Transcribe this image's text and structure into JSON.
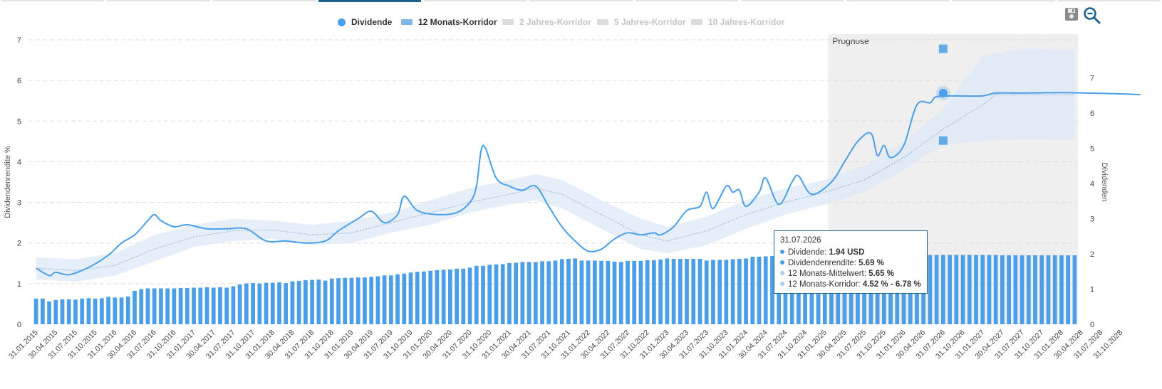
{
  "tabs": [
    {
      "active": false
    },
    {
      "active": false
    },
    {
      "active": false
    },
    {
      "active": true
    },
    {
      "active": false
    },
    {
      "active": false
    },
    {
      "active": false
    },
    {
      "active": false
    },
    {
      "active": false
    },
    {
      "active": false
    },
    {
      "active": false
    }
  ],
  "legend": [
    {
      "label": "Dividende",
      "active": true,
      "shape": "dot"
    },
    {
      "label": "12 Monats-Korridor",
      "active": true,
      "shape": "bar"
    },
    {
      "label": "2 Jahres-Korridor",
      "active": false,
      "shape": "bar"
    },
    {
      "label": "5 Jahres-Korridor",
      "active": false,
      "shape": "bar"
    },
    {
      "label": "10 Jahres-Korridor",
      "active": false,
      "shape": "bar"
    }
  ],
  "toolbar": {
    "save_icon": "save-icon",
    "zoom_icon": "zoom-out-icon"
  },
  "tooltip": {
    "date": "31.07.2026",
    "rows": [
      {
        "label": "Dividende: ",
        "value": "1.94 USD"
      },
      {
        "label": "Dividendenrendite: ",
        "value": "5.69 %"
      },
      {
        "label": "12 Monats-Mittelwert: ",
        "value": "5.65 %"
      },
      {
        "label": "12 Monats-Korridor: ",
        "value": "4.52 % - 6.78 %"
      }
    ]
  },
  "chart_data": {
    "type": "bar+line",
    "title": "",
    "ylabel_left": "Dividendenrendite %",
    "ylabel_right": "Dividenden",
    "ylim_left": [
      0,
      7
    ],
    "ylim_right": [
      0,
      8
    ],
    "yticks_left": [
      "0",
      "1",
      "2",
      "3",
      "4",
      "5",
      "6",
      "7"
    ],
    "yticks_right": [
      "0",
      "1",
      "2",
      "3",
      "4",
      "5",
      "6",
      "7"
    ],
    "forecast_label": "Prognose",
    "forecast_start_month": 121,
    "colors": {
      "line": "#4a9fe8",
      "bar": "#4a9fe8",
      "band": "#ddeaf7",
      "forecast_bg": "#efefef"
    },
    "x_tick_labels": [
      "31.01.2015",
      "30.04.2015",
      "31.07.2015",
      "31.10.2015",
      "31.01.2016",
      "30.04.2016",
      "31.07.2016",
      "31.10.2016",
      "31.01.2017",
      "30.04.2017",
      "31.07.2017",
      "31.10.2017",
      "31.01.2018",
      "30.04.2018",
      "31.07.2018",
      "31.10.2018",
      "31.01.2019",
      "30.04.2019",
      "31.07.2019",
      "31.10.2019",
      "31.01.2020",
      "30.04.2020",
      "31.07.2020",
      "31.10.2020",
      "31.01.2021",
      "30.04.2021",
      "31.07.2021",
      "31.10.2021",
      "31.01.2022",
      "30.04.2022",
      "31.07.2022",
      "31.10.2022",
      "31.01.2023",
      "30.04.2023",
      "31.07.2023",
      "31.10.2023",
      "31.01.2024",
      "30.04.2024",
      "31.07.2024",
      "31.10.2024",
      "31.01.2025",
      "30.04.2025",
      "31.07.2025",
      "31.10.2025",
      "31.01.2026",
      "30.04.2026",
      "31.07.2026",
      "31.10.2026",
      "31.01.2027",
      "30.04.2027",
      "31.07.2027",
      "31.10.2027",
      "31.01.2028",
      "30.04.2028",
      "31.07.2028",
      "31.10.2028"
    ],
    "bars_dividend_usd": [
      0.73,
      0.73,
      0.65,
      0.69,
      0.71,
      0.71,
      0.7,
      0.73,
      0.74,
      0.73,
      0.74,
      0.78,
      0.76,
      0.76,
      0.79,
      0.95,
      1.0,
      1.02,
      1.02,
      1.02,
      1.02,
      1.02,
      1.03,
      1.03,
      1.04,
      1.04,
      1.05,
      1.04,
      1.05,
      1.04,
      1.08,
      1.13,
      1.16,
      1.17,
      1.16,
      1.18,
      1.18,
      1.19,
      1.17,
      1.22,
      1.23,
      1.25,
      1.26,
      1.27,
      1.24,
      1.3,
      1.31,
      1.32,
      1.32,
      1.33,
      1.33,
      1.35,
      1.36,
      1.39,
      1.39,
      1.42,
      1.44,
      1.47,
      1.49,
      1.5,
      1.52,
      1.54,
      1.55,
      1.56,
      1.58,
      1.58,
      1.61,
      1.66,
      1.66,
      1.69,
      1.7,
      1.71,
      1.74,
      1.75,
      1.77,
      1.77,
      1.77,
      1.79,
      1.79,
      1.81,
      1.85,
      1.86,
      1.87,
      1.81,
      1.81,
      1.81,
      1.8,
      1.8,
      1.78,
      1.77,
      1.8,
      1.8,
      1.8,
      1.82,
      1.82,
      1.84,
      1.87,
      1.86,
      1.86,
      1.86,
      1.86,
      1.86,
      1.81,
      1.83,
      1.83,
      1.83,
      1.85,
      1.86,
      1.87,
      1.92,
      1.92,
      1.93,
      1.94,
      1.95,
      1.96,
      1.97,
      1.97,
      1.95,
      1.95,
      1.96,
      1.96,
      1.96,
      1.96,
      1.96,
      1.96,
      1.96,
      1.96,
      1.96,
      1.96,
      1.96,
      1.96,
      1.96,
      1.97,
      1.97,
      1.97,
      1.97,
      1.97,
      1.97,
      1.97,
      1.97,
      1.97,
      1.97,
      1.97,
      1.97,
      1.97,
      1.97,
      1.97,
      1.96,
      1.96,
      1.96,
      1.96,
      1.96,
      1.96,
      1.96,
      1.96,
      1.96,
      1.96,
      1.96,
      1.96
    ],
    "series": [
      {
        "name": "Dividende",
        "points": [
          [
            0,
            1.38
          ],
          [
            2,
            1.2
          ],
          [
            3,
            1.28
          ],
          [
            5,
            1.22
          ],
          [
            8,
            1.4
          ],
          [
            11,
            1.7
          ],
          [
            13,
            2.0
          ],
          [
            15,
            2.2
          ],
          [
            17,
            2.55
          ],
          [
            18,
            2.7
          ],
          [
            19,
            2.55
          ],
          [
            21,
            2.4
          ],
          [
            23,
            2.45
          ],
          [
            26,
            2.35
          ],
          [
            29,
            2.35
          ],
          [
            32,
            2.35
          ],
          [
            35,
            2.05
          ],
          [
            38,
            2.05
          ],
          [
            41,
            2.0
          ],
          [
            44,
            2.05
          ],
          [
            46,
            2.3
          ],
          [
            49,
            2.6
          ],
          [
            51,
            2.78
          ],
          [
            53,
            2.5
          ],
          [
            55,
            2.7
          ],
          [
            56,
            3.15
          ],
          [
            58,
            2.8
          ],
          [
            61,
            2.7
          ],
          [
            64,
            2.75
          ],
          [
            66,
            3.0
          ],
          [
            67,
            3.4
          ],
          [
            68,
            4.4
          ],
          [
            70,
            3.6
          ],
          [
            72,
            3.4
          ],
          [
            74,
            3.3
          ],
          [
            76,
            3.4
          ],
          [
            78,
            2.9
          ],
          [
            80,
            2.4
          ],
          [
            82,
            2.05
          ],
          [
            84,
            1.8
          ],
          [
            86,
            1.85
          ],
          [
            88,
            2.1
          ],
          [
            90,
            2.25
          ],
          [
            92,
            2.2
          ],
          [
            94,
            2.25
          ],
          [
            95,
            2.2
          ],
          [
            97,
            2.4
          ],
          [
            99,
            2.8
          ],
          [
            101,
            2.9
          ],
          [
            102,
            3.25
          ],
          [
            103,
            2.85
          ],
          [
            105,
            3.4
          ],
          [
            106,
            3.25
          ],
          [
            107,
            3.3
          ],
          [
            108,
            2.9
          ],
          [
            110,
            3.25
          ],
          [
            111,
            3.6
          ],
          [
            113,
            2.95
          ],
          [
            115,
            3.5
          ],
          [
            116,
            3.65
          ],
          [
            118,
            3.2
          ],
          [
            121,
            3.5
          ],
          [
            123,
            4.0
          ],
          [
            125,
            4.5
          ],
          [
            127,
            4.7
          ],
          [
            128,
            4.15
          ],
          [
            129,
            4.4
          ],
          [
            130,
            4.1
          ],
          [
            132,
            4.4
          ],
          [
            134,
            5.4
          ],
          [
            136,
            5.45
          ],
          [
            137,
            5.6
          ],
          [
            140,
            5.62
          ],
          [
            144,
            5.62
          ],
          [
            146,
            5.69
          ],
          [
            150,
            5.69
          ],
          [
            155,
            5.7
          ],
          [
            157,
            5.7
          ],
          [
            160,
            5.69
          ],
          [
            165,
            5.67
          ],
          [
            168,
            5.65
          ]
        ]
      },
      {
        "name": "12 Monats-Korridor",
        "mean": [
          [
            0,
            1.38
          ],
          [
            6,
            1.32
          ],
          [
            12,
            1.45
          ],
          [
            18,
            1.85
          ],
          [
            24,
            2.15
          ],
          [
            30,
            2.3
          ],
          [
            36,
            2.32
          ],
          [
            42,
            2.2
          ],
          [
            48,
            2.25
          ],
          [
            54,
            2.5
          ],
          [
            60,
            2.75
          ],
          [
            66,
            3.0
          ],
          [
            72,
            3.2
          ],
          [
            76,
            3.35
          ],
          [
            80,
            3.2
          ],
          [
            86,
            2.7
          ],
          [
            92,
            2.2
          ],
          [
            96,
            2.05
          ],
          [
            102,
            2.3
          ],
          [
            108,
            2.7
          ],
          [
            114,
            3.0
          ],
          [
            120,
            3.25
          ],
          [
            126,
            3.55
          ],
          [
            132,
            4.1
          ],
          [
            138,
            4.8
          ],
          [
            144,
            5.4
          ],
          [
            146,
            5.65
          ],
          [
            168,
            5.66
          ]
        ],
        "lower": [
          [
            0,
            1.1
          ],
          [
            6,
            1.05
          ],
          [
            12,
            1.2
          ],
          [
            18,
            1.55
          ],
          [
            24,
            1.9
          ],
          [
            30,
            2.05
          ],
          [
            36,
            2.1
          ],
          [
            42,
            1.95
          ],
          [
            48,
            2.0
          ],
          [
            54,
            2.25
          ],
          [
            60,
            2.45
          ],
          [
            66,
            2.75
          ],
          [
            72,
            2.95
          ],
          [
            76,
            3.05
          ],
          [
            80,
            2.85
          ],
          [
            86,
            2.35
          ],
          [
            92,
            1.85
          ],
          [
            96,
            1.75
          ],
          [
            102,
            1.95
          ],
          [
            108,
            2.35
          ],
          [
            114,
            2.7
          ],
          [
            120,
            2.95
          ],
          [
            126,
            3.25
          ],
          [
            132,
            3.8
          ],
          [
            138,
            4.4
          ],
          [
            144,
            4.52
          ],
          [
            150,
            4.55
          ],
          [
            168,
            4.52
          ]
        ],
        "upper": [
          [
            0,
            1.65
          ],
          [
            6,
            1.6
          ],
          [
            12,
            1.75
          ],
          [
            18,
            2.2
          ],
          [
            24,
            2.45
          ],
          [
            30,
            2.6
          ],
          [
            36,
            2.55
          ],
          [
            42,
            2.45
          ],
          [
            48,
            2.55
          ],
          [
            54,
            2.75
          ],
          [
            60,
            3.05
          ],
          [
            66,
            3.35
          ],
          [
            72,
            3.55
          ],
          [
            76,
            3.7
          ],
          [
            80,
            3.55
          ],
          [
            86,
            3.05
          ],
          [
            92,
            2.6
          ],
          [
            96,
            2.4
          ],
          [
            102,
            2.65
          ],
          [
            108,
            3.05
          ],
          [
            114,
            3.35
          ],
          [
            120,
            3.55
          ],
          [
            126,
            3.9
          ],
          [
            132,
            4.5
          ],
          [
            138,
            5.3
          ],
          [
            144,
            6.6
          ],
          [
            150,
            6.78
          ],
          [
            168,
            6.75
          ]
        ]
      }
    ],
    "highlight": {
      "month": 138,
      "value": 5.69,
      "upper": 6.78,
      "lower": 4.52
    }
  }
}
